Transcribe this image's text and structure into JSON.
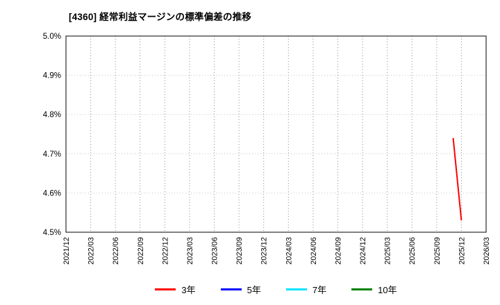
{
  "chart_data": {
    "type": "line",
    "title": "[4360]  経常利益マージンの標準偏差の推移",
    "x_categories": [
      "2021/12",
      "2022/03",
      "2022/06",
      "2022/09",
      "2022/12",
      "2023/03",
      "2023/06",
      "2023/09",
      "2023/12",
      "2024/03",
      "2024/06",
      "2024/09",
      "2024/12",
      "2025/03",
      "2025/06",
      "2025/09",
      "2025/12",
      "2026/03"
    ],
    "ylim": [
      4.5,
      5.0
    ],
    "yticks": [
      4.5,
      4.6,
      4.7,
      4.8,
      4.9,
      5.0
    ],
    "ytick_labels": [
      "4.5%",
      "4.6%",
      "4.7%",
      "4.8%",
      "4.9%",
      "5.0%"
    ],
    "grid": true,
    "legend_position": "bottom",
    "series": [
      {
        "name": "3年",
        "color": "#ff0000",
        "points": [
          {
            "x": "2025/11",
            "y": 4.74
          },
          {
            "x": "2025/12",
            "y": 4.53
          }
        ]
      },
      {
        "name": "5年",
        "color": "#0000ff",
        "points": []
      },
      {
        "name": "7年",
        "color": "#00e5ff",
        "points": []
      },
      {
        "name": "10年",
        "color": "#008000",
        "points": []
      }
    ]
  }
}
